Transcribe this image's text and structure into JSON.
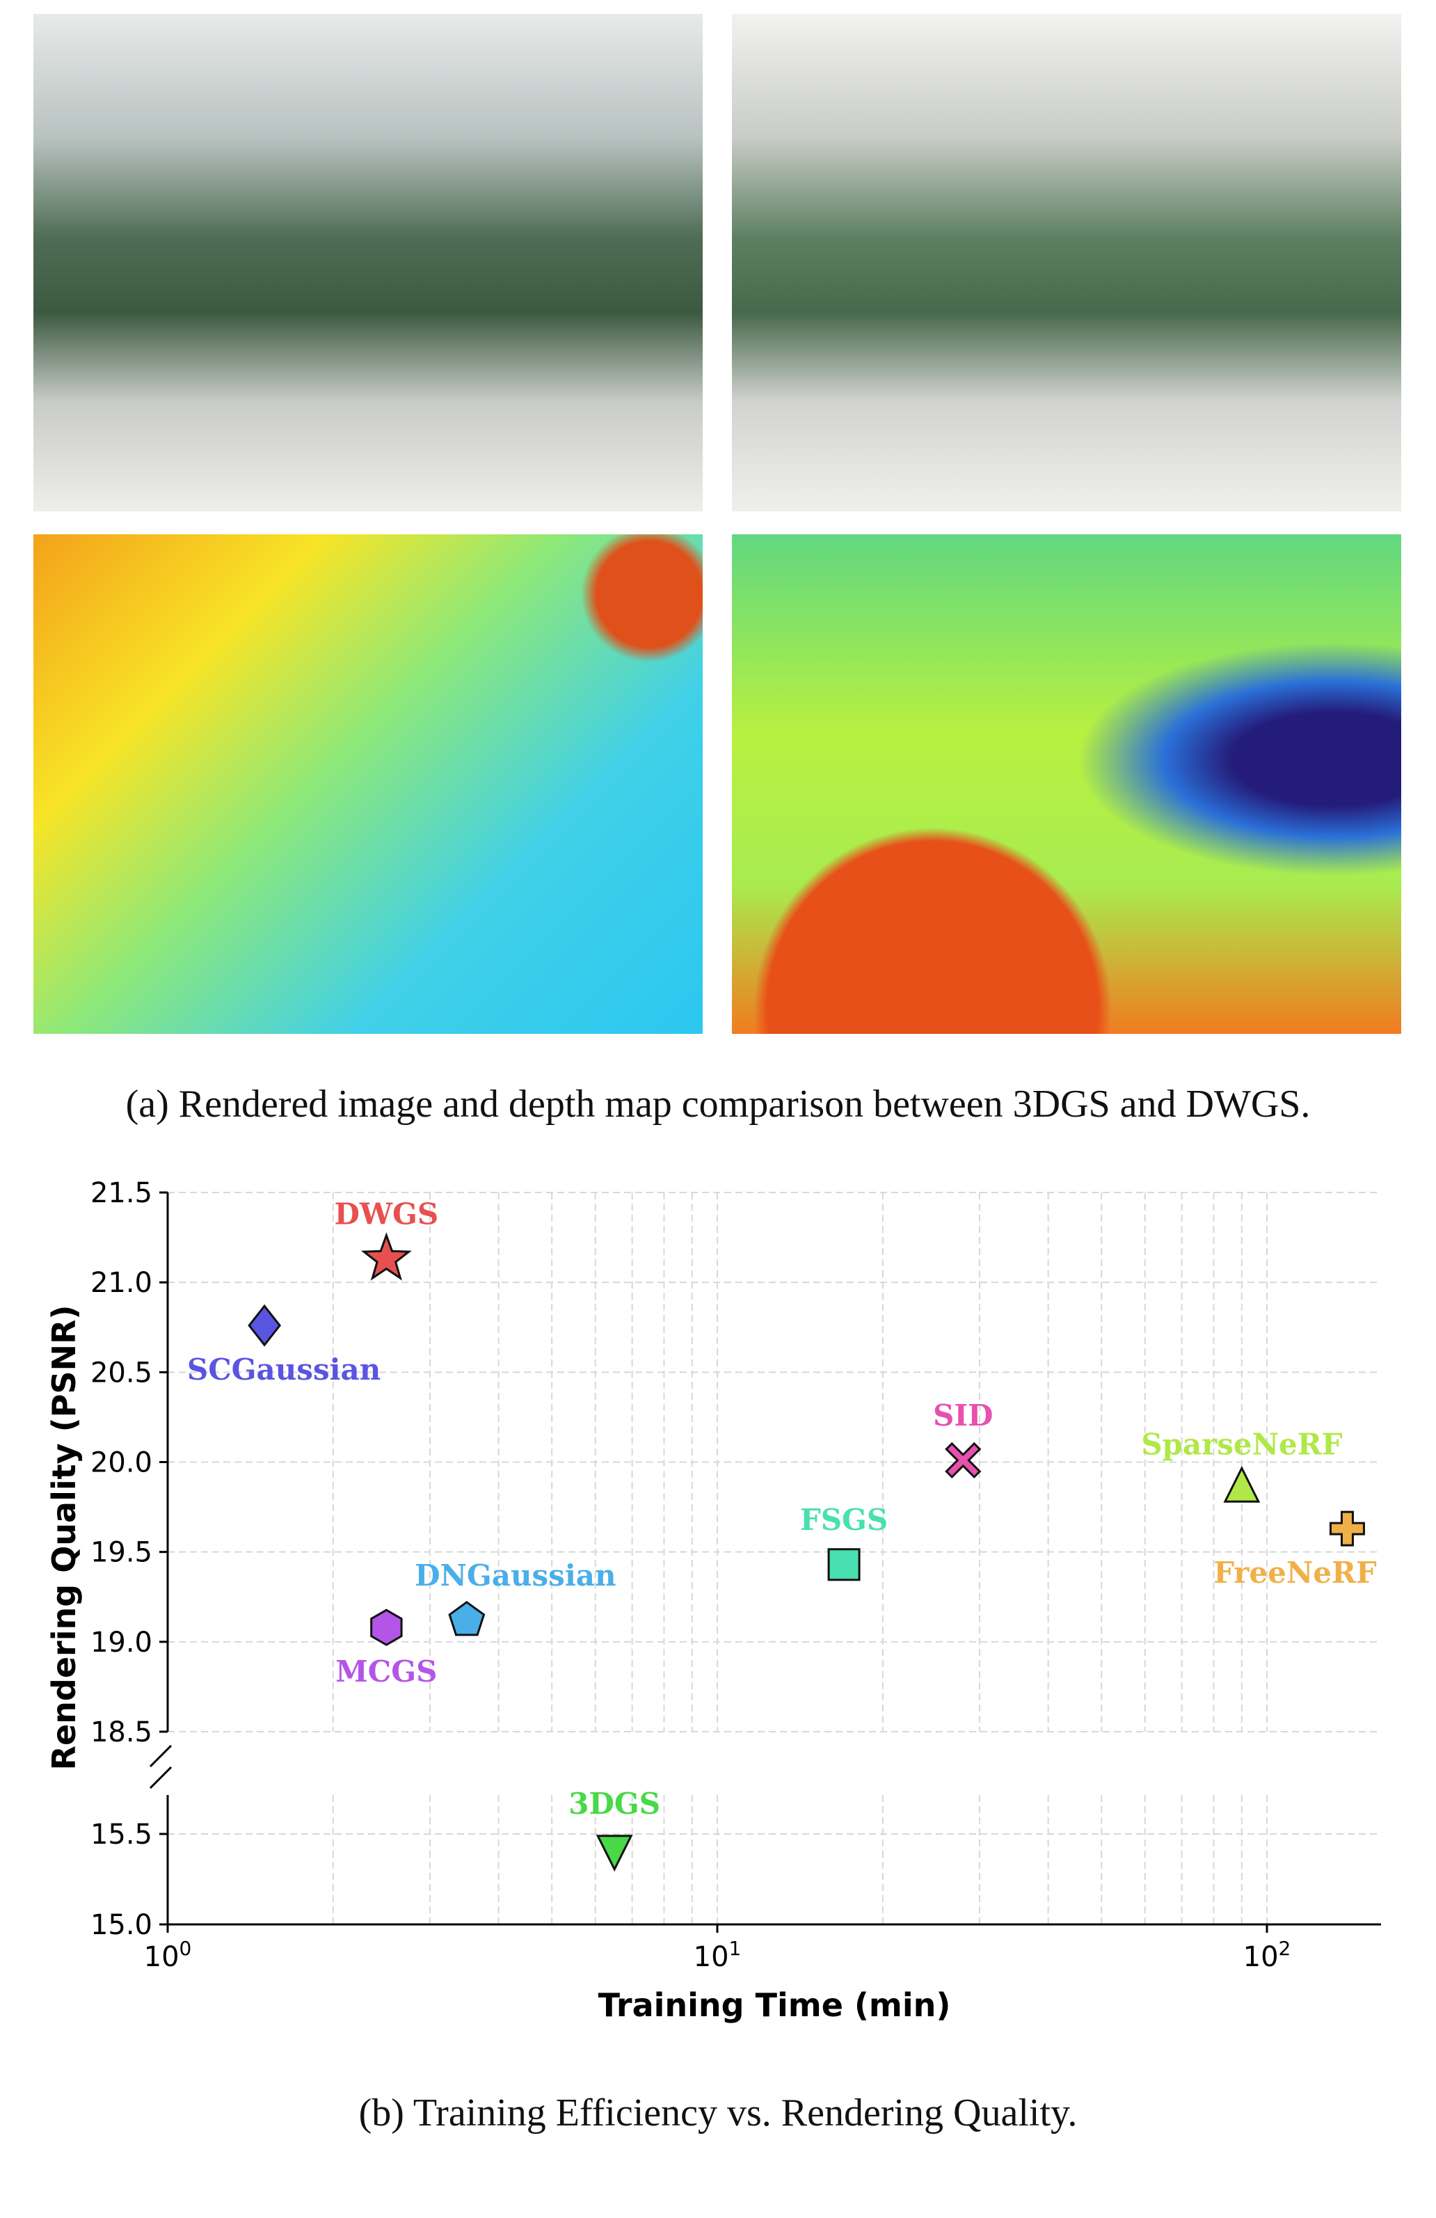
{
  "figure_a": {
    "caption": "(a) Rendered image and depth map comparison between 3DGS and DWGS."
  },
  "figure_b": {
    "caption": "(b) Training Efficiency vs. Rendering Quality."
  },
  "chart_data": {
    "type": "scatter",
    "title": "",
    "xlabel": "Training Time (min)",
    "ylabel": "Rendering Quality (PSNR)",
    "xscale": "log",
    "xlim": [
      1,
      160
    ],
    "ylim_upper": [
      18.5,
      21.5
    ],
    "ylim_lower": [
      15.0,
      15.7
    ],
    "grid": true,
    "xticks": [
      {
        "value": 1,
        "base": "10",
        "exp": "0"
      },
      {
        "value": 10,
        "base": "10",
        "exp": "1"
      },
      {
        "value": 100,
        "base": "10",
        "exp": "2"
      }
    ],
    "yticks_upper": [
      "18.5",
      "19.0",
      "19.5",
      "20.0",
      "20.5",
      "21.0",
      "21.5"
    ],
    "yticks_lower": [
      "15.0",
      "15.5"
    ],
    "points": [
      {
        "name": "DWGS",
        "x": 2.5,
        "y": 21.13,
        "marker": "star",
        "color": "#e85050",
        "label_pos": "above"
      },
      {
        "name": "SCGaussian",
        "x": 1.5,
        "y": 20.76,
        "marker": "diamond",
        "color": "#5a55e0",
        "label_pos": "below"
      },
      {
        "name": "MCGS",
        "x": 2.5,
        "y": 19.08,
        "marker": "hexagon",
        "color": "#b455e8",
        "label_pos": "below"
      },
      {
        "name": "DNGaussian",
        "x": 3.5,
        "y": 19.12,
        "marker": "pentagon",
        "color": "#4aaee8",
        "label_pos": "above-right"
      },
      {
        "name": "FSGS",
        "x": 17,
        "y": 19.43,
        "marker": "square",
        "color": "#48e0b0",
        "label_pos": "above"
      },
      {
        "name": "SID",
        "x": 28,
        "y": 20.01,
        "marker": "x",
        "color": "#e850b0",
        "label_pos": "above"
      },
      {
        "name": "SparseNeRF",
        "x": 90,
        "y": 19.85,
        "marker": "triangle-up",
        "color": "#b0e848",
        "label_pos": "above"
      },
      {
        "name": "FreeNeRF",
        "x": 140,
        "y": 19.63,
        "marker": "plus",
        "color": "#f0b048",
        "label_pos": "below"
      },
      {
        "name": "3DGS",
        "x": 6.5,
        "y": 15.42,
        "marker": "triangle-down",
        "color": "#48d848",
        "label_pos": "above"
      }
    ]
  }
}
